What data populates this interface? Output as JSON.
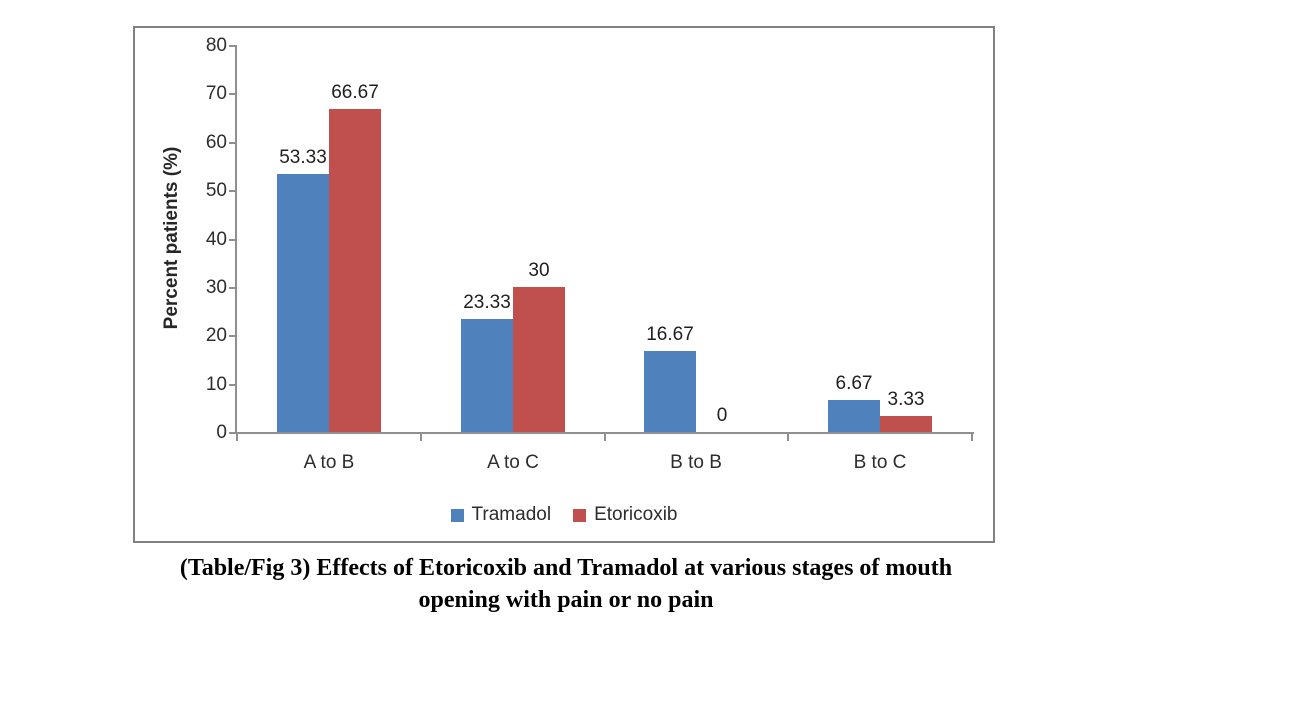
{
  "chart_data": {
    "type": "bar",
    "title": "(Table/Fig 3) Effects of Etoricoxib and Tramadol at various stages of mouth opening with pain or no pain",
    "xlabel": "",
    "ylabel": "Percent patients (%)",
    "ylim": [
      0,
      80
    ],
    "y_ticks": [
      0,
      10,
      20,
      30,
      40,
      50,
      60,
      70,
      80
    ],
    "grid": false,
    "legend_position": "bottom",
    "categories": [
      "A to B",
      "A to C",
      "B to B",
      "B to C"
    ],
    "series": [
      {
        "name": "Tramadol",
        "color": "#4F81BD",
        "values": [
          53.33,
          23.33,
          16.67,
          6.67
        ],
        "labels": [
          "53.33",
          "23.33",
          "16.67",
          "6.67"
        ]
      },
      {
        "name": "Etoricoxib",
        "color": "#C0504D",
        "values": [
          66.67,
          30,
          0,
          3.33
        ],
        "labels": [
          "66.67",
          "30",
          "0",
          "3.33"
        ]
      }
    ]
  },
  "caption": {
    "line1": "(Table/Fig 3) Effects of Etoricoxib and Tramadol at various stages of mouth",
    "line2": "opening with pain or no pain"
  },
  "colors": {
    "tramadol_bar": "#4F81BD",
    "etoricoxib_bar": "#C0504D",
    "axis_line": "#8f8f8f",
    "frame_border": "#818181",
    "text": "#2d2d2d"
  }
}
